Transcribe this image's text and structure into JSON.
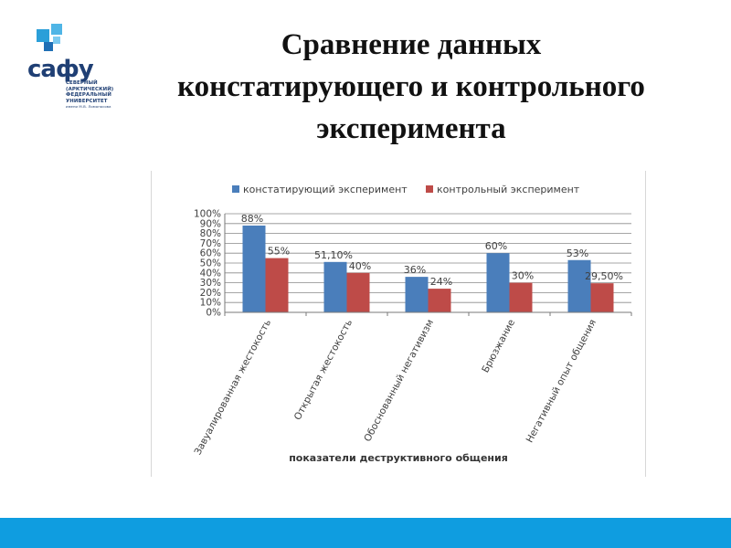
{
  "logo": {
    "mark_text": "сафу",
    "lines": [
      "СЕВЕРНЫЙ",
      "(АРКТИЧЕСКИЙ)",
      "ФЕДЕРАЛЬНЫЙ",
      "УНИВЕРСИТЕТ"
    ],
    "subline": "имени М.В. Ломоносова",
    "color": "#1f3f74",
    "accent": "#2b9fd9"
  },
  "slide": {
    "title_lines": [
      "Сравнение данных",
      "констатирующего и контрольного",
      "эксперимента"
    ]
  },
  "chart_data": {
    "type": "bar",
    "categories": [
      "Завуалированная жестокость",
      "Открытая жестокость",
      "Обоснованный негативизм",
      "Брюзжание",
      "Негативный опыт общения"
    ],
    "series": [
      {
        "name": "констатирующий эксперимент",
        "color": "#4a7ebb",
        "values": [
          88,
          51.1,
          36,
          60,
          53
        ],
        "labels": [
          "88%",
          "51,10%",
          "36%",
          "60%",
          "53%"
        ]
      },
      {
        "name": "контрольный эксперимент",
        "color": "#be4b48",
        "values": [
          55,
          40,
          24,
          30,
          29.5
        ],
        "labels": [
          "55%",
          "40%",
          "24%",
          "30%",
          "29,50%"
        ]
      }
    ],
    "y_ticks": [
      "0%",
      "10%",
      "20%",
      "30%",
      "40%",
      "50%",
      "60%",
      "70%",
      "80%",
      "90%",
      "100%"
    ],
    "ylim": [
      0,
      100
    ],
    "xlabel": "показатели деструктивного общения",
    "ylabel": "",
    "legend_position": "top",
    "grid": true
  }
}
